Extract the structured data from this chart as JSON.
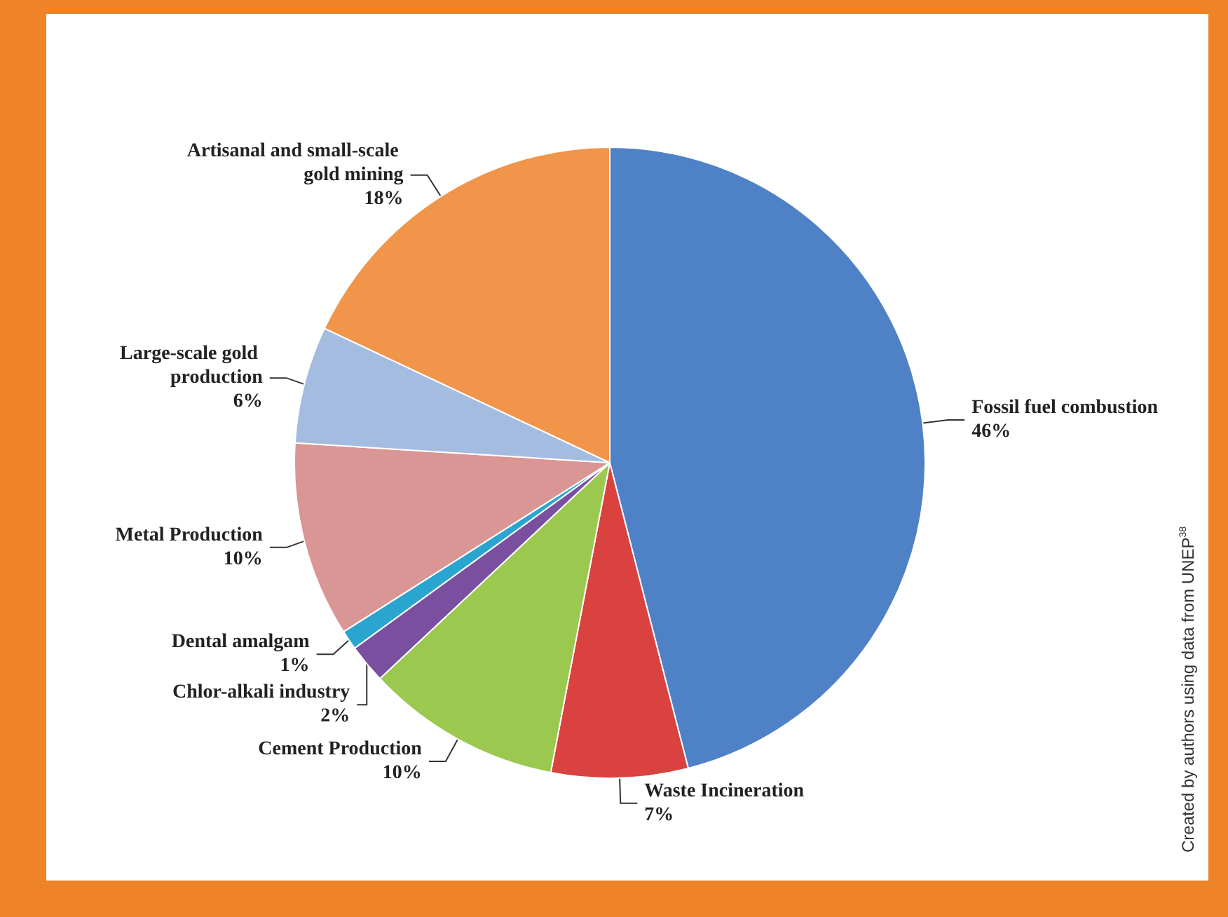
{
  "chart_data": {
    "type": "pie",
    "categories": [
      "Fossil fuel combustion",
      "Waste Incineration",
      "Cement Production",
      "Chlor-alkali industry",
      "Dental amalgam",
      "Metal Production",
      "Large-scale gold production",
      "Artisanal and small-scale gold mining"
    ],
    "values": [
      46,
      7,
      10,
      2,
      1,
      10,
      6,
      18
    ],
    "value_labels": [
      "46%",
      "7%",
      "10%",
      "2%",
      "1%",
      "10%",
      "6%",
      "18%"
    ],
    "colors": [
      "#4f81c7",
      "#d9423f",
      "#9bc84f",
      "#7a4fa0",
      "#2aa5cf",
      "#d99694",
      "#a4bce0",
      "#f0954a"
    ],
    "annotations": [
      "Created by authors using data from UNEP$^{38}$"
    ],
    "legend": false
  }
}
